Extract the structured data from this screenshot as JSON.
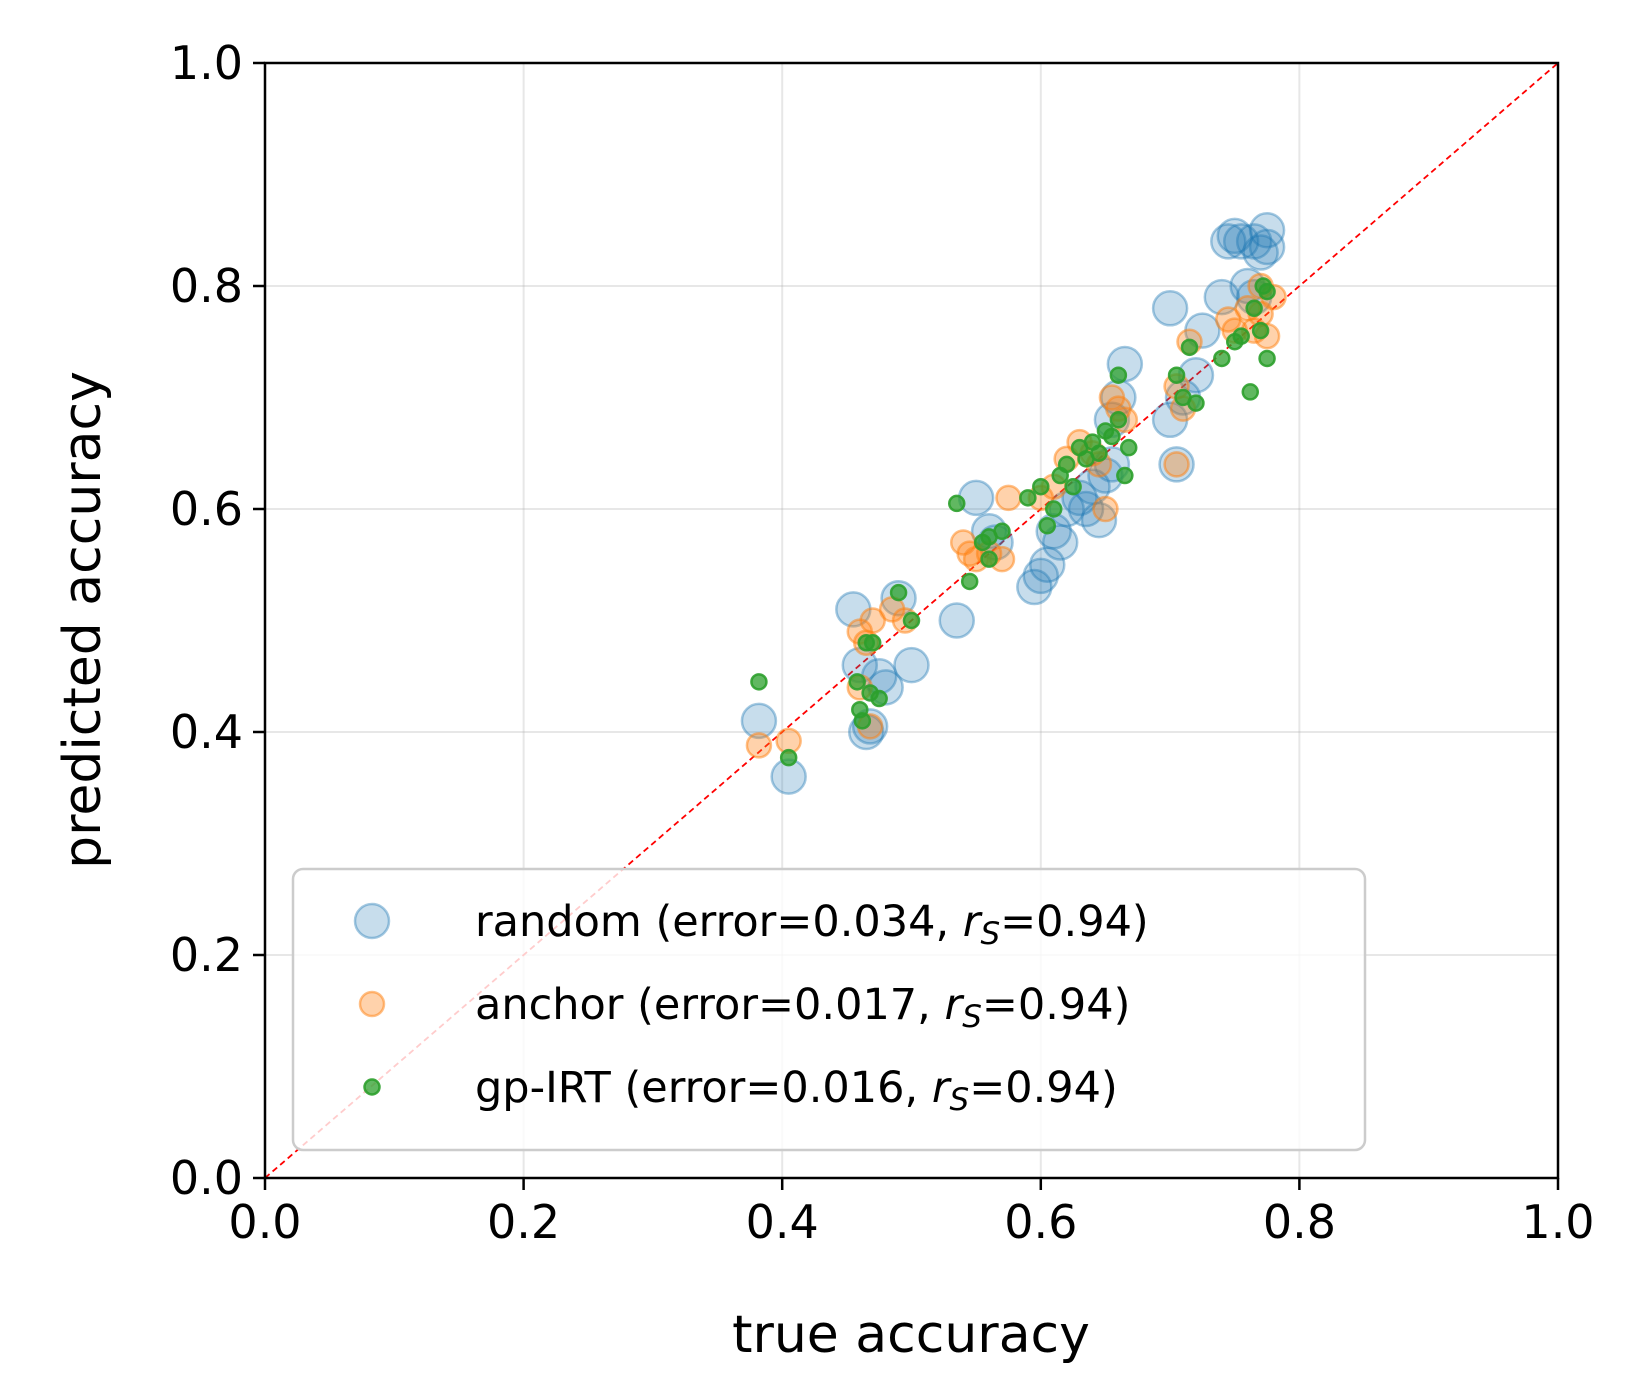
{
  "chart_data": {
    "type": "scatter",
    "xlabel": "true accuracy",
    "ylabel": "predicted accuracy",
    "xlim": [
      0.0,
      1.0
    ],
    "ylim": [
      0.0,
      1.0
    ],
    "xticks": [
      "0.0",
      "0.2",
      "0.4",
      "0.6",
      "0.8",
      "1.0"
    ],
    "yticks": [
      "0.0",
      "0.2",
      "0.4",
      "0.6",
      "0.8",
      "1.0"
    ],
    "grid": true,
    "diagonal": {
      "from": [
        0,
        0
      ],
      "to": [
        1,
        1
      ],
      "color": "#ff0000",
      "style": "dashed"
    },
    "legend": {
      "placement": "lower-right"
    },
    "series": [
      {
        "name": "random",
        "legend_main": "random (error=0.034, ",
        "legend_rs": "=0.94)",
        "color": "#1f77b4",
        "alpha": 0.25,
        "marker_size": "large",
        "points": [
          [
            0.382,
            0.41
          ],
          [
            0.405,
            0.36
          ],
          [
            0.455,
            0.51
          ],
          [
            0.46,
            0.46
          ],
          [
            0.465,
            0.4
          ],
          [
            0.468,
            0.405
          ],
          [
            0.475,
            0.45
          ],
          [
            0.48,
            0.44
          ],
          [
            0.49,
            0.52
          ],
          [
            0.5,
            0.46
          ],
          [
            0.535,
            0.5
          ],
          [
            0.55,
            0.61
          ],
          [
            0.56,
            0.58
          ],
          [
            0.565,
            0.57
          ],
          [
            0.595,
            0.53
          ],
          [
            0.6,
            0.54
          ],
          [
            0.605,
            0.55
          ],
          [
            0.61,
            0.58
          ],
          [
            0.615,
            0.57
          ],
          [
            0.62,
            0.6
          ],
          [
            0.63,
            0.61
          ],
          [
            0.635,
            0.6
          ],
          [
            0.64,
            0.62
          ],
          [
            0.645,
            0.59
          ],
          [
            0.65,
            0.63
          ],
          [
            0.655,
            0.64
          ],
          [
            0.66,
            0.7
          ],
          [
            0.665,
            0.73
          ],
          [
            0.655,
            0.68
          ],
          [
            0.7,
            0.78
          ],
          [
            0.7,
            0.68
          ],
          [
            0.705,
            0.64
          ],
          [
            0.71,
            0.7
          ],
          [
            0.72,
            0.72
          ],
          [
            0.725,
            0.76
          ],
          [
            0.74,
            0.79
          ],
          [
            0.745,
            0.84
          ],
          [
            0.75,
            0.845
          ],
          [
            0.755,
            0.84
          ],
          [
            0.765,
            0.84
          ],
          [
            0.77,
            0.83
          ],
          [
            0.775,
            0.85
          ],
          [
            0.775,
            0.835
          ],
          [
            0.765,
            0.79
          ],
          [
            0.76,
            0.8
          ]
        ]
      },
      {
        "name": "anchor",
        "legend_main": "anchor  (error=0.017, ",
        "legend_rs": "=0.94)",
        "color": "#ff7f0e",
        "alpha": 0.35,
        "marker_size": "medium",
        "points": [
          [
            0.382,
            0.388
          ],
          [
            0.405,
            0.392
          ],
          [
            0.46,
            0.49
          ],
          [
            0.465,
            0.48
          ],
          [
            0.468,
            0.405
          ],
          [
            0.46,
            0.44
          ],
          [
            0.47,
            0.5
          ],
          [
            0.485,
            0.51
          ],
          [
            0.495,
            0.5
          ],
          [
            0.54,
            0.57
          ],
          [
            0.545,
            0.56
          ],
          [
            0.55,
            0.555
          ],
          [
            0.56,
            0.56
          ],
          [
            0.57,
            0.555
          ],
          [
            0.575,
            0.61
          ],
          [
            0.6,
            0.61
          ],
          [
            0.61,
            0.62
          ],
          [
            0.62,
            0.645
          ],
          [
            0.63,
            0.66
          ],
          [
            0.64,
            0.65
          ],
          [
            0.645,
            0.64
          ],
          [
            0.655,
            0.7
          ],
          [
            0.66,
            0.69
          ],
          [
            0.665,
            0.68
          ],
          [
            0.65,
            0.6
          ],
          [
            0.705,
            0.71
          ],
          [
            0.705,
            0.64
          ],
          [
            0.71,
            0.69
          ],
          [
            0.715,
            0.75
          ],
          [
            0.745,
            0.77
          ],
          [
            0.75,
            0.76
          ],
          [
            0.76,
            0.78
          ],
          [
            0.765,
            0.76
          ],
          [
            0.77,
            0.775
          ],
          [
            0.775,
            0.755
          ],
          [
            0.78,
            0.79
          ],
          [
            0.77,
            0.8
          ]
        ]
      },
      {
        "name": "gp-IRT",
        "legend_main": "gp-IRT   (error=0.016, ",
        "legend_rs": "=0.94)",
        "color": "#2ca02c",
        "alpha": 0.75,
        "marker_size": "small",
        "points": [
          [
            0.382,
            0.445
          ],
          [
            0.405,
            0.377
          ],
          [
            0.458,
            0.445
          ],
          [
            0.46,
            0.42
          ],
          [
            0.462,
            0.41
          ],
          [
            0.465,
            0.48
          ],
          [
            0.468,
            0.435
          ],
          [
            0.47,
            0.48
          ],
          [
            0.475,
            0.43
          ],
          [
            0.49,
            0.525
          ],
          [
            0.5,
            0.5
          ],
          [
            0.535,
            0.605
          ],
          [
            0.545,
            0.535
          ],
          [
            0.555,
            0.57
          ],
          [
            0.56,
            0.575
          ],
          [
            0.56,
            0.555
          ],
          [
            0.57,
            0.58
          ],
          [
            0.59,
            0.61
          ],
          [
            0.6,
            0.62
          ],
          [
            0.605,
            0.585
          ],
          [
            0.61,
            0.6
          ],
          [
            0.615,
            0.63
          ],
          [
            0.62,
            0.64
          ],
          [
            0.625,
            0.62
          ],
          [
            0.63,
            0.655
          ],
          [
            0.635,
            0.645
          ],
          [
            0.64,
            0.66
          ],
          [
            0.645,
            0.65
          ],
          [
            0.65,
            0.67
          ],
          [
            0.655,
            0.665
          ],
          [
            0.66,
            0.68
          ],
          [
            0.66,
            0.72
          ],
          [
            0.665,
            0.63
          ],
          [
            0.668,
            0.655
          ],
          [
            0.705,
            0.72
          ],
          [
            0.71,
            0.7
          ],
          [
            0.715,
            0.745
          ],
          [
            0.72,
            0.695
          ],
          [
            0.74,
            0.735
          ],
          [
            0.75,
            0.75
          ],
          [
            0.755,
            0.755
          ],
          [
            0.762,
            0.705
          ],
          [
            0.765,
            0.78
          ],
          [
            0.77,
            0.76
          ],
          [
            0.772,
            0.8
          ],
          [
            0.775,
            0.735
          ],
          [
            0.775,
            0.795
          ]
        ]
      }
    ]
  }
}
